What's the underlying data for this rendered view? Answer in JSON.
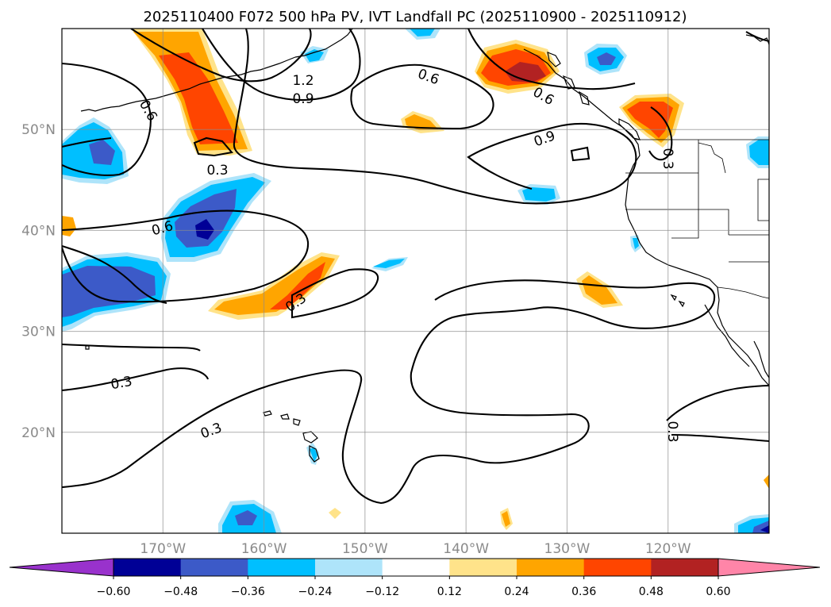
{
  "title": "2025110400 F072 500 hPa PV, IVT Landfall PC (2025110900 - 2025110912)",
  "map": {
    "lon_range": [
      -180,
      -110
    ],
    "lat_range": [
      10,
      60
    ],
    "lon_ticks": [
      {
        "lon": -170,
        "label": "170°W"
      },
      {
        "lon": -160,
        "label": "160°W"
      },
      {
        "lon": -150,
        "label": "150°W"
      },
      {
        "lon": -140,
        "label": "140°W"
      },
      {
        "lon": -130,
        "label": "130°W"
      },
      {
        "lon": -120,
        "label": "120°W"
      }
    ],
    "lat_ticks": [
      {
        "lat": 50,
        "label": "50°N"
      },
      {
        "lat": 40,
        "label": "40°N"
      },
      {
        "lat": 30,
        "label": "30°N"
      },
      {
        "lat": 20,
        "label": "20°N"
      }
    ],
    "grid": true
  },
  "colorbar": {
    "ticks": [
      "−0.60",
      "−0.48",
      "−0.36",
      "−0.24",
      "−0.12",
      "0.12",
      "0.24",
      "0.36",
      "0.48",
      "0.60"
    ],
    "extend": "both",
    "colors": {
      "under": "#9932cc",
      "n060": "#000096",
      "n048": "#3c5ac8",
      "n036": "#00bfff",
      "n024": "#aee4fa",
      "n012": "#ffffff",
      "p012": "#ffe38a",
      "p024": "#ffa500",
      "p036": "#ff4500",
      "p048": "#b22222",
      "over": "#ff85a8"
    }
  },
  "contour_labels": {
    "c12": "1.2",
    "c09a": "0.9",
    "c06a": "0.6",
    "c06b": "0.6",
    "c09b": "0.9",
    "c06c": "0.6",
    "c03a": "0.3",
    "c03b": "0.3",
    "c03c": "0.3",
    "c03d": "0.3",
    "c03e": "0.3",
    "c03f": "0.3",
    "c06d": "0.6"
  }
}
